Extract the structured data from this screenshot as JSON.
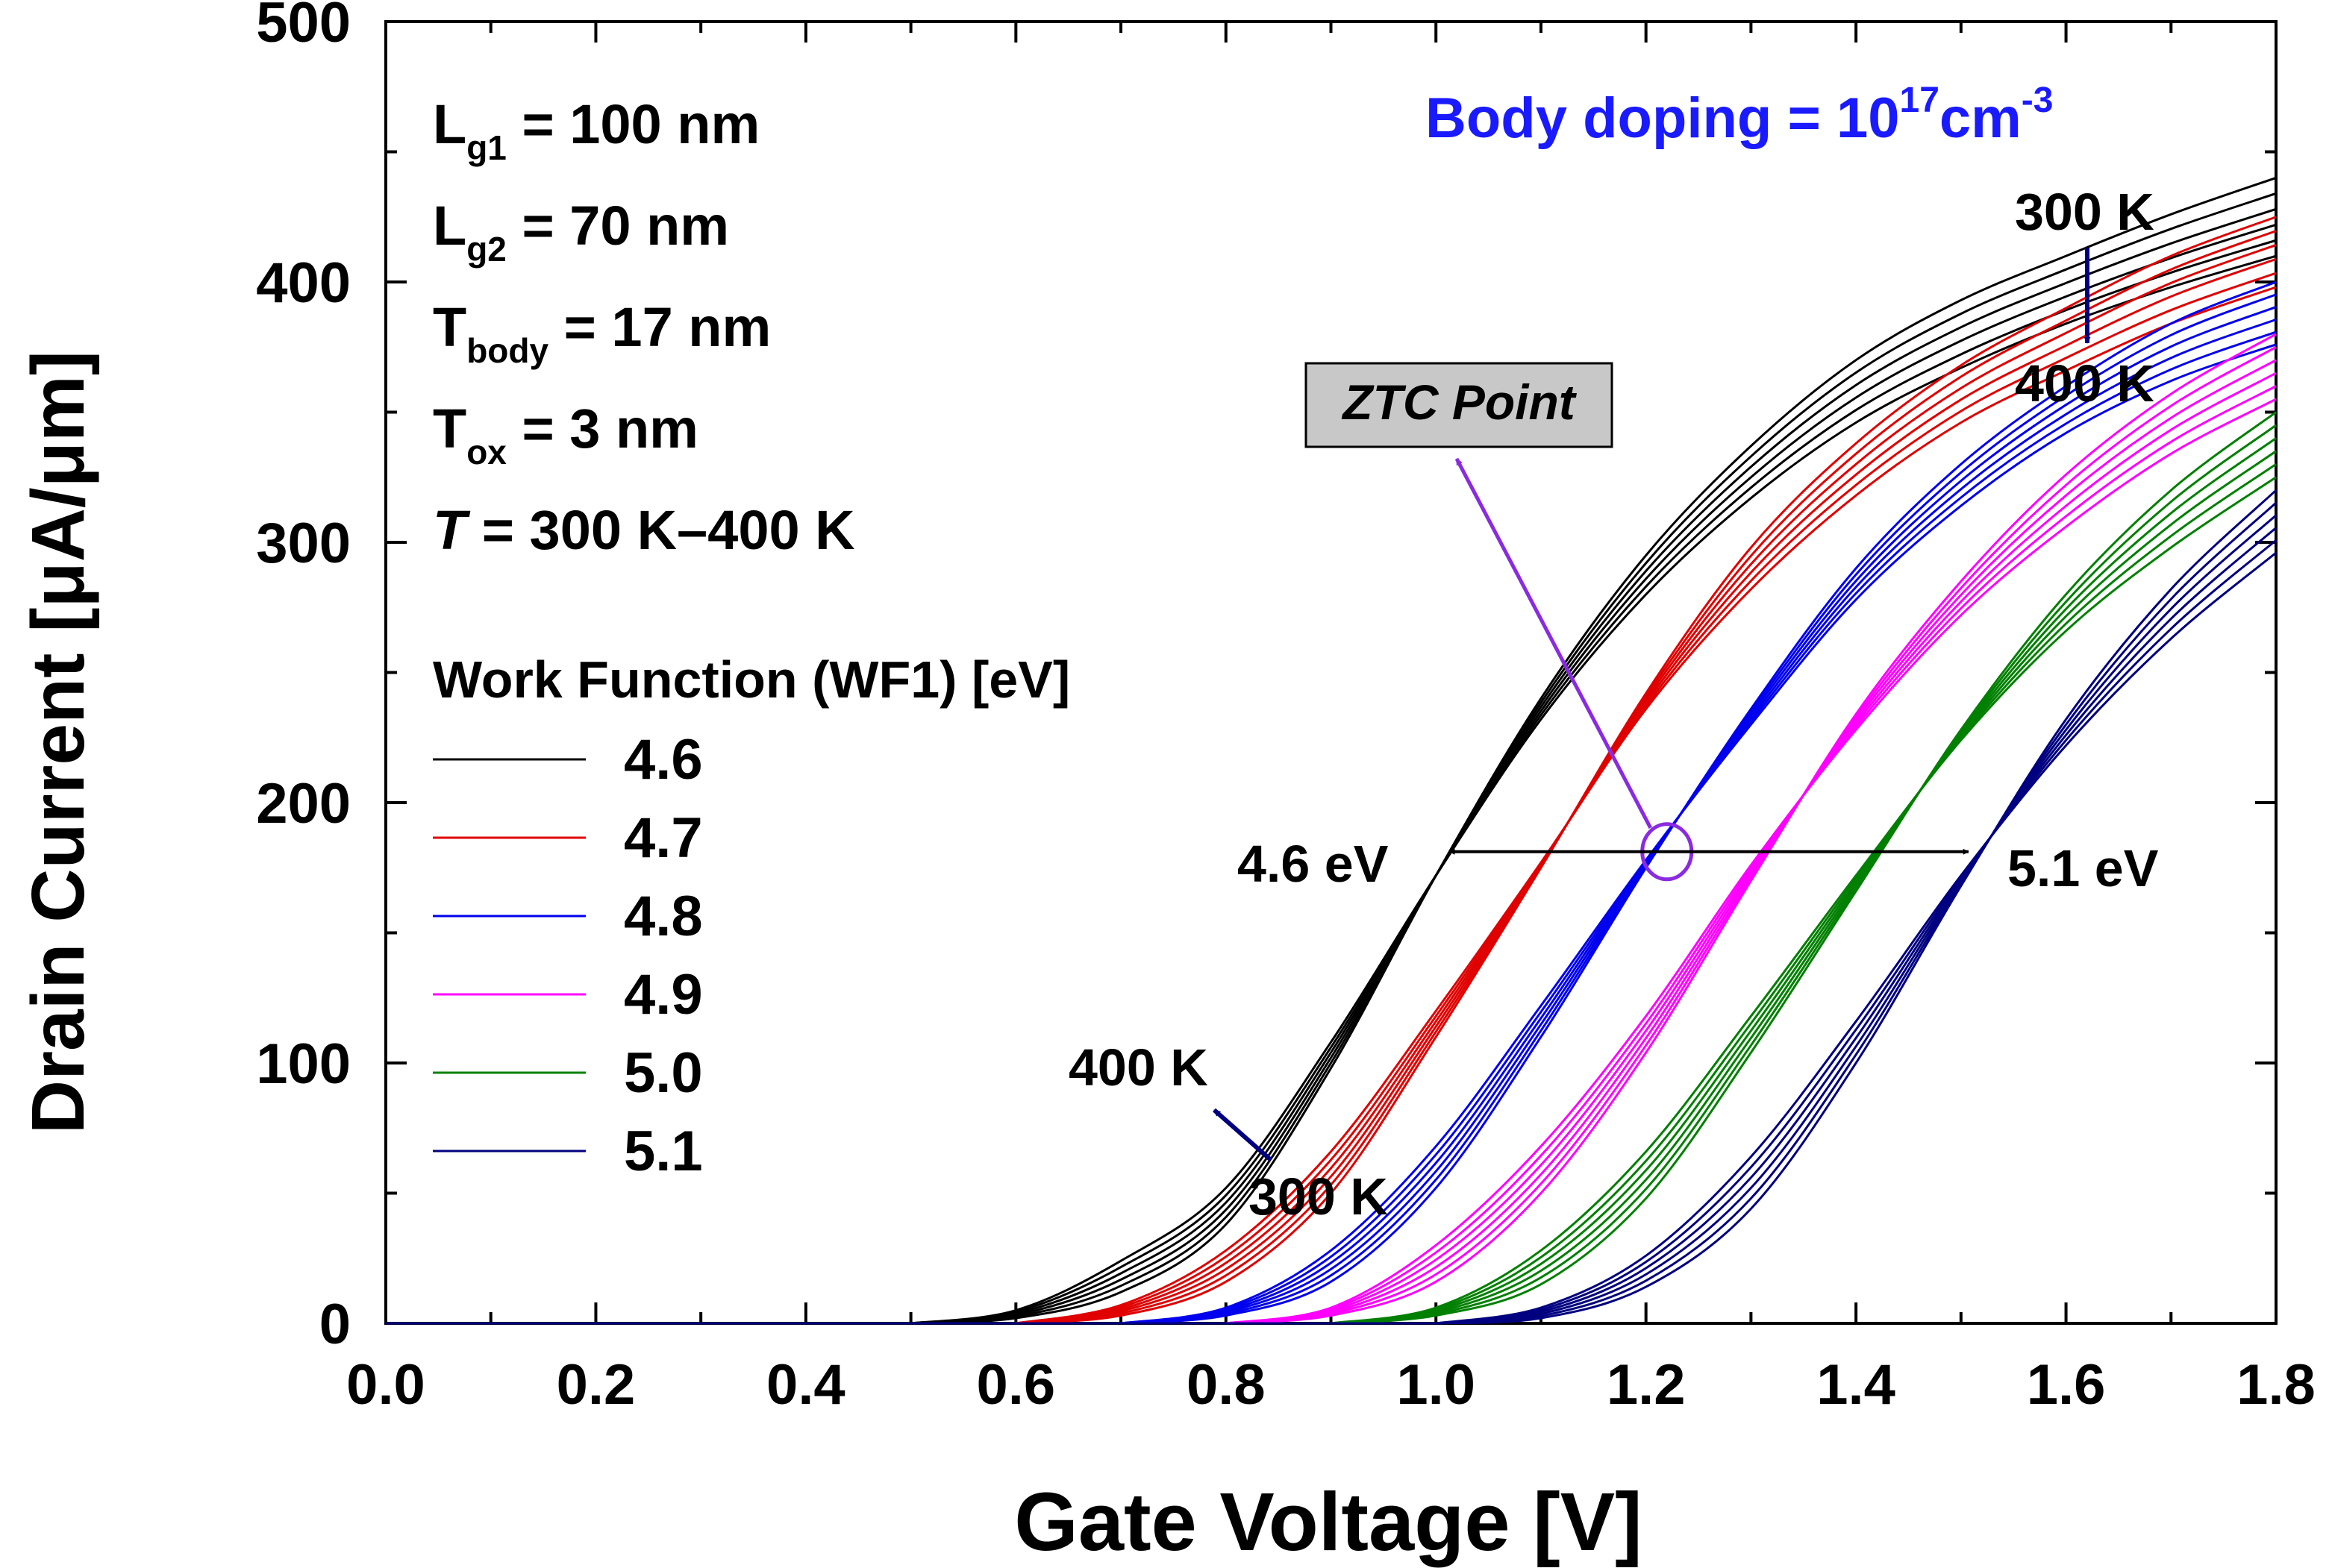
{
  "chart_data": {
    "type": "line",
    "xlabel": "Gate Voltage [V]",
    "ylabel": "Drain Current [μA/μm]",
    "xlim": [
      0.0,
      1.8
    ],
    "ylim": [
      0,
      500
    ],
    "xticks": [
      "0.0",
      "0.2",
      "0.4",
      "0.6",
      "0.8",
      "1.0",
      "1.2",
      "1.4",
      "1.6",
      "1.8"
    ],
    "yticks": [
      "0",
      "100",
      "200",
      "300",
      "400",
      "500"
    ],
    "grid": false,
    "legend_title": "Work Function (WF1) [eV]",
    "legend_position": "left",
    "params": [
      {
        "main": "L",
        "sub": "g1",
        "rest": " = 100 nm"
      },
      {
        "main": "L",
        "sub": "g2",
        "rest": " = 70 nm"
      },
      {
        "main": "T",
        "sub": "body",
        "rest": " = 17 nm"
      },
      {
        "main": "T",
        "sub": "ox",
        "rest": " = 3 nm"
      },
      {
        "main": "T",
        "sub": "",
        "rest": " = 300 K–400 K",
        "italic": true
      }
    ],
    "body_doping": {
      "text": "Body doping = 10",
      "sup1": "17",
      "unit": "cm",
      "sup2": "-3",
      "color": "#1a1aff"
    },
    "annotations": {
      "ztc": "ZTC Point",
      "t300_top": "300 K",
      "t400_top": "400 K",
      "t400_bottom": "400 K",
      "t300_bottom": "300 K",
      "wf_low": "4.6 eV",
      "wf_high": "5.1 eV"
    },
    "ztc_current": 180,
    "temperatures_K": [
      300,
      320,
      340,
      360,
      380,
      400
    ],
    "series": [
      {
        "name": "4.6",
        "color": "#000000",
        "ztc_v": 1.01,
        "curves": [
          {
            "T": 300,
            "x": [
              0.5,
              0.6,
              0.7,
              0.8,
              0.9,
              1.0,
              1.1,
              1.2,
              1.3,
              1.4,
              1.5,
              1.6,
              1.7,
              1.8
            ],
            "y": [
              0,
              2,
              12,
              38,
              98,
              172,
              240,
              295,
              337,
              370,
              393,
              410,
              426,
              440
            ]
          },
          {
            "T": 400,
            "x": [
              0.5,
              0.6,
              0.7,
              0.8,
              0.9,
              1.0,
              1.1,
              1.2,
              1.3,
              1.4,
              1.5,
              1.6,
              1.7,
              1.8
            ],
            "y": [
              0,
              5,
              24,
              52,
              108,
              172,
              232,
              280,
              317,
              346,
              367,
              384,
              398,
              410
            ]
          }
        ]
      },
      {
        "name": "4.7",
        "color": "#e00000",
        "ztc_v": 1.11,
        "curves": [
          {
            "T": 300,
            "x": [
              0.6,
              0.7,
              0.8,
              0.9,
              1.0,
              1.1,
              1.2,
              1.3,
              1.4,
              1.5,
              1.6,
              1.7,
              1.8
            ],
            "y": [
              0,
              3,
              16,
              50,
              110,
              175,
              242,
              298,
              338,
              368,
              390,
              410,
              425
            ]
          },
          {
            "T": 400,
            "x": [
              0.6,
              0.7,
              0.8,
              0.9,
              1.0,
              1.1,
              1.2,
              1.3,
              1.4,
              1.5,
              1.6,
              1.7,
              1.8
            ],
            "y": [
              0,
              7,
              28,
              66,
              120,
              177,
              236,
              282,
              318,
              346,
              366,
              384,
              398
            ]
          }
        ]
      },
      {
        "name": "4.8",
        "color": "#0000ee",
        "ztc_v": 1.21,
        "curves": [
          {
            "T": 300,
            "x": [
              0.7,
              0.8,
              0.9,
              1.0,
              1.1,
              1.2,
              1.3,
              1.4,
              1.5,
              1.6,
              1.7,
              1.8
            ],
            "y": [
              0,
              3,
              16,
              52,
              110,
              175,
              236,
              290,
              330,
              360,
              384,
              400
            ]
          },
          {
            "T": 400,
            "x": [
              0.7,
              0.8,
              0.9,
              1.0,
              1.1,
              1.2,
              1.3,
              1.4,
              1.5,
              1.6,
              1.7,
              1.8
            ],
            "y": [
              0,
              6,
              28,
              68,
              122,
              178,
              230,
              278,
              314,
              342,
              362,
              376
            ]
          }
        ]
      },
      {
        "name": "4.9",
        "color": "#ff00ff",
        "ztc_v": 1.32,
        "curves": [
          {
            "T": 300,
            "x": [
              0.8,
              0.9,
              1.0,
              1.1,
              1.2,
              1.3,
              1.4,
              1.5,
              1.6,
              1.7,
              1.8
            ],
            "y": [
              0,
              3,
              16,
              50,
              104,
              170,
              234,
              285,
              326,
              357,
              380
            ]
          },
          {
            "T": 400,
            "x": [
              0.8,
              0.9,
              1.0,
              1.1,
              1.2,
              1.3,
              1.4,
              1.5,
              1.6,
              1.7,
              1.8
            ],
            "y": [
              0,
              6,
              30,
              68,
              118,
              176,
              228,
              272,
              306,
              334,
              355
            ]
          }
        ]
      },
      {
        "name": "5.0",
        "color": "#008000",
        "ztc_v": 1.42,
        "curves": [
          {
            "T": 300,
            "x": [
              0.9,
              1.0,
              1.1,
              1.2,
              1.3,
              1.4,
              1.5,
              1.6,
              1.7,
              1.8
            ],
            "y": [
              0,
              3,
              15,
              48,
              104,
              166,
              228,
              280,
              320,
              350
            ]
          },
          {
            "T": 400,
            "x": [
              0.9,
              1.0,
              1.1,
              1.2,
              1.3,
              1.4,
              1.5,
              1.6,
              1.7,
              1.8
            ],
            "y": [
              0,
              6,
              28,
              66,
              118,
              172,
              224,
              266,
              298,
              325
            ]
          }
        ]
      },
      {
        "name": "5.1",
        "color": "#000080",
        "ztc_v": 1.51,
        "curves": [
          {
            "T": 300,
            "x": [
              1.0,
              1.1,
              1.2,
              1.3,
              1.4,
              1.5,
              1.6,
              1.7,
              1.8
            ],
            "y": [
              0,
              2,
              14,
              44,
              100,
              168,
              232,
              282,
              320
            ]
          },
          {
            "T": 400,
            "x": [
              1.0,
              1.1,
              1.2,
              1.3,
              1.4,
              1.5,
              1.6,
              1.7,
              1.8
            ],
            "y": [
              0,
              6,
              26,
              64,
              116,
              172,
              222,
              263,
              296
            ]
          }
        ]
      }
    ]
  }
}
